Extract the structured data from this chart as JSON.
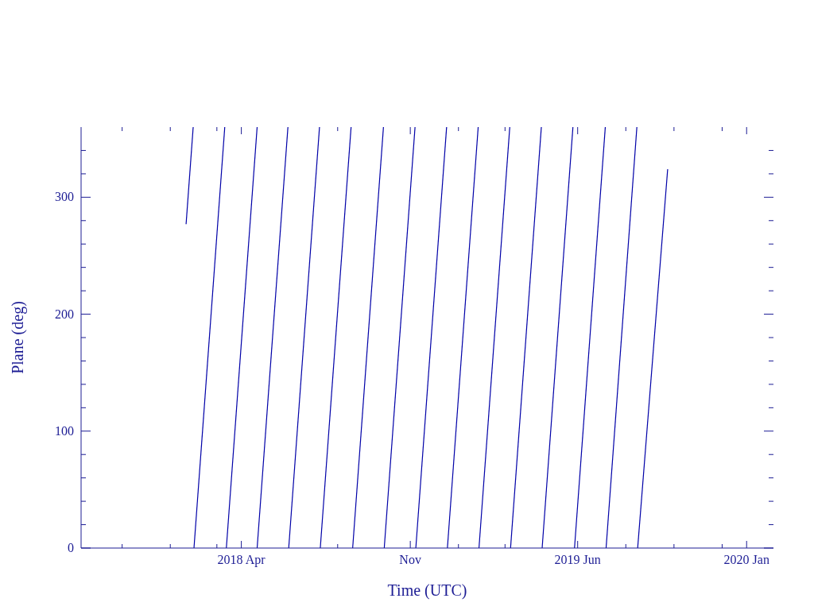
{
  "chart_data": {
    "type": "line",
    "xlabel": "Time (UTC)",
    "ylabel": "Plane (deg)",
    "color": "#0000a8",
    "xlim": [
      "2017-09-10",
      "2020-02-04"
    ],
    "xticks": [
      {
        "value": "2017-11-01",
        "label": null
      },
      {
        "value": "2018-01-01",
        "label": null
      },
      {
        "value": "2018-03-01",
        "label": null
      },
      {
        "value": "2018-04-01",
        "label": "2018 Apr"
      },
      {
        "value": "2018-08-01",
        "label": null
      },
      {
        "value": "2018-11-01",
        "label": "Nov"
      },
      {
        "value": "2019-01-01",
        "label": null
      },
      {
        "value": "2019-03-01",
        "label": null
      },
      {
        "value": "2019-06-01",
        "label": "2019 Jun"
      },
      {
        "value": "2019-08-01",
        "label": null
      },
      {
        "value": "2019-10-01",
        "label": null
      },
      {
        "value": "2019-12-01",
        "label": null
      },
      {
        "value": "2020-01-01",
        "label": "2020 Jan"
      }
    ],
    "ylim": [
      0,
      360
    ],
    "yticks": [
      0,
      {
        "value": 20,
        "label": null
      },
      {
        "value": 40,
        "label": null
      },
      {
        "value": 60,
        "label": null
      },
      {
        "value": 80,
        "label": null
      },
      100,
      {
        "value": 120,
        "label": null
      },
      {
        "value": 140,
        "label": null
      },
      {
        "value": 160,
        "label": null
      },
      {
        "value": 180,
        "label": null
      },
      200,
      {
        "value": 220,
        "label": null
      },
      {
        "value": 240,
        "label": null
      },
      {
        "value": 260,
        "label": null
      },
      {
        "value": 280,
        "label": null
      },
      300,
      {
        "value": 320,
        "label": null
      },
      {
        "value": 340,
        "label": null
      }
    ],
    "series": [
      {
        "x": [
          "2018-01-21",
          "2018-01-30"
        ],
        "values": [
          277,
          360
        ]
      },
      {
        "x": [
          "2018-01-31",
          "2018-03-11"
        ],
        "values": [
          0,
          360
        ]
      },
      {
        "x": [
          "2018-03-13",
          "2018-04-21"
        ],
        "values": [
          0,
          360
        ]
      },
      {
        "x": [
          "2018-04-21",
          "2018-05-30"
        ],
        "values": [
          0,
          360
        ]
      },
      {
        "x": [
          "2018-05-31",
          "2018-07-09"
        ],
        "values": [
          0,
          360
        ]
      },
      {
        "x": [
          "2018-07-10",
          "2018-08-18"
        ],
        "values": [
          0,
          360
        ]
      },
      {
        "x": [
          "2018-08-20",
          "2018-09-28"
        ],
        "values": [
          0,
          360
        ]
      },
      {
        "x": [
          "2018-09-29",
          "2018-11-07"
        ],
        "values": [
          0,
          360
        ]
      },
      {
        "x": [
          "2018-11-08",
          "2018-12-17"
        ],
        "values": [
          0,
          360
        ]
      },
      {
        "x": [
          "2018-12-18",
          "2019-01-26"
        ],
        "values": [
          0,
          360
        ]
      },
      {
        "x": [
          "2019-01-27",
          "2019-03-07"
        ],
        "values": [
          0,
          360
        ]
      },
      {
        "x": [
          "2019-03-08",
          "2019-04-16"
        ],
        "values": [
          0,
          360
        ]
      },
      {
        "x": [
          "2019-04-17",
          "2019-05-26"
        ],
        "values": [
          0,
          360
        ]
      },
      {
        "x": [
          "2019-05-28",
          "2019-07-06"
        ],
        "values": [
          0,
          360
        ]
      },
      {
        "x": [
          "2019-07-07",
          "2019-08-15"
        ],
        "values": [
          0,
          360
        ]
      },
      {
        "x": [
          "2019-08-16",
          "2019-09-23"
        ],
        "values": [
          0,
          324
        ]
      }
    ]
  }
}
